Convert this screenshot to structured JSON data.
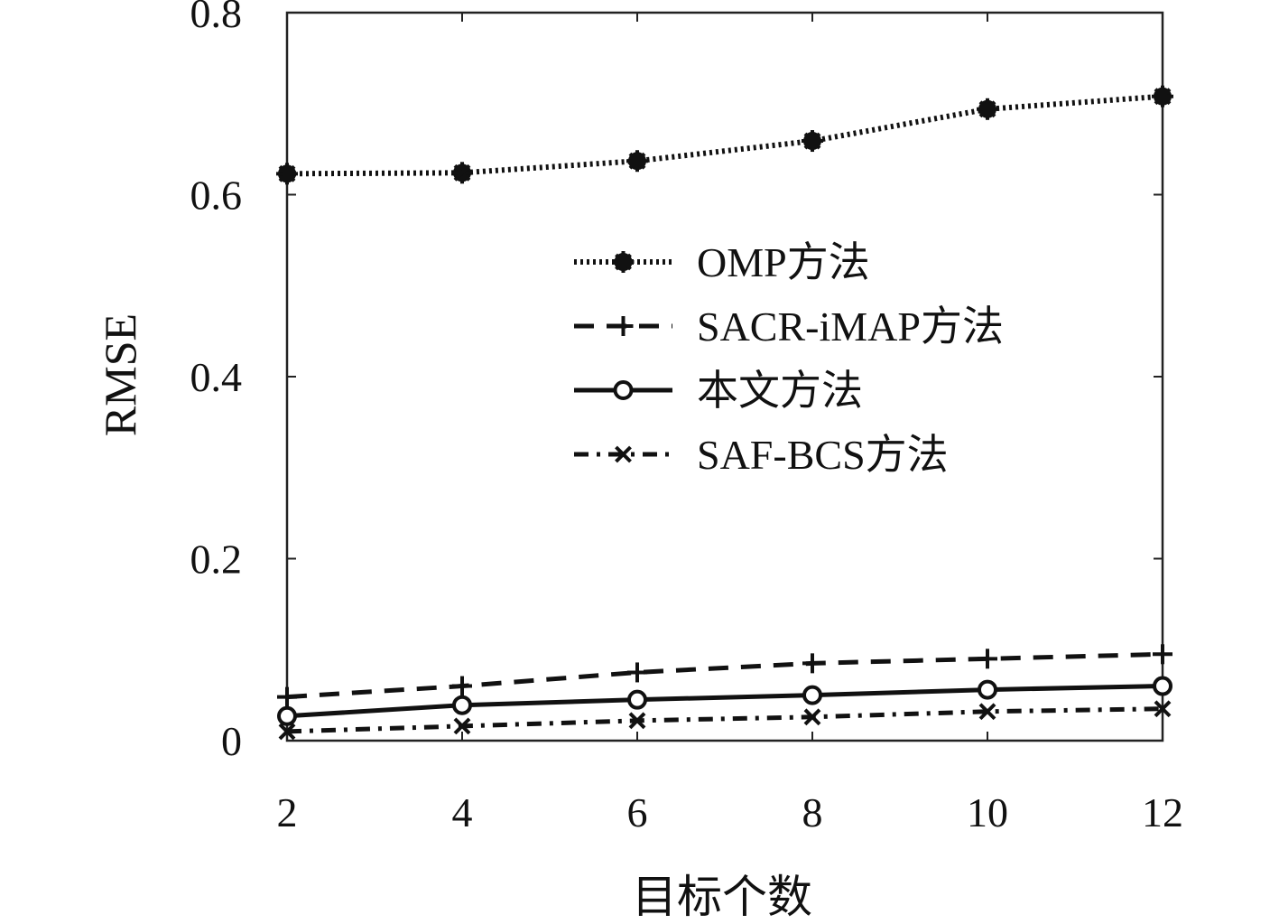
{
  "chart_data": {
    "type": "line",
    "xlabel": "目标个数",
    "ylabel": "RMSE",
    "x": [
      2,
      4,
      6,
      8,
      10,
      12
    ],
    "xticks": [
      2,
      4,
      6,
      8,
      10,
      12
    ],
    "yticks": [
      0,
      0.2,
      0.4,
      0.6,
      0.8
    ],
    "ytick_labels": [
      "0",
      "0.2",
      "0.4",
      "0.6",
      "0.8"
    ],
    "xlim": [
      2,
      12
    ],
    "ylim": [
      0,
      0.8
    ],
    "grid": false,
    "legend_position": "center-right",
    "series": [
      {
        "name": "OMP方法",
        "values": [
          0.623,
          0.624,
          0.637,
          0.659,
          0.694,
          0.708
        ],
        "line_style": "dotted",
        "marker": "asterisk"
      },
      {
        "name": "SACR-iMAP方法",
        "values": [
          0.048,
          0.06,
          0.075,
          0.085,
          0.09,
          0.095
        ],
        "line_style": "dashed",
        "marker": "plus"
      },
      {
        "name": "本文方法",
        "values": [
          0.027,
          0.039,
          0.045,
          0.05,
          0.056,
          0.06
        ],
        "line_style": "solid",
        "marker": "circle"
      },
      {
        "name": "SAF-BCS方法",
        "values": [
          0.01,
          0.016,
          0.022,
          0.026,
          0.032,
          0.035
        ],
        "line_style": "dashdot",
        "marker": "x"
      }
    ]
  }
}
